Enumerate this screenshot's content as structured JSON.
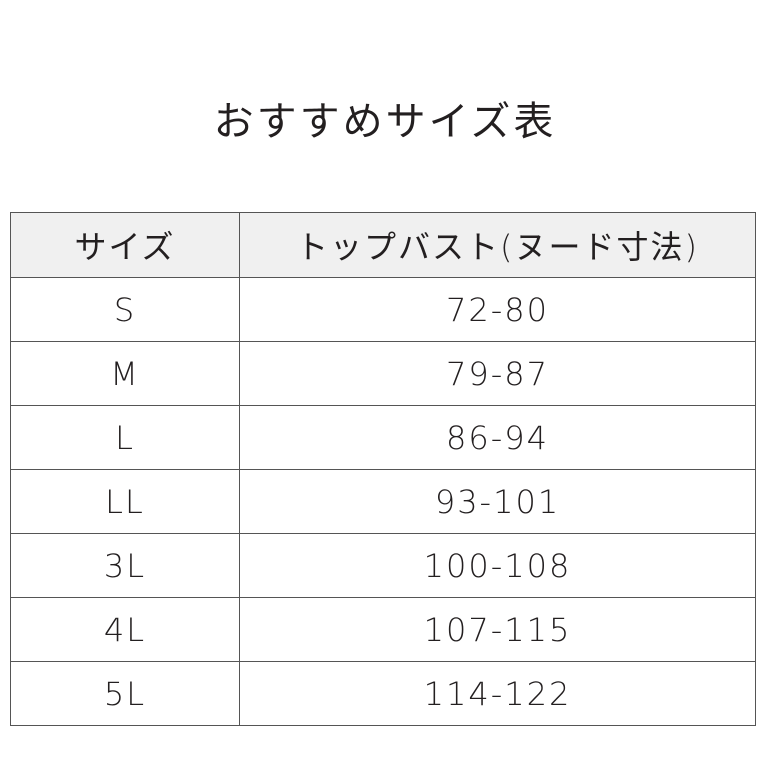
{
  "header": {
    "title": "おすすめサイズ表"
  },
  "table": {
    "columns": [
      "サイズ",
      "トップバスト(ヌード寸法)"
    ],
    "rows": [
      [
        "S",
        "72-80"
      ],
      [
        "M",
        "79-87"
      ],
      [
        "L",
        "86-94"
      ],
      [
        "LL",
        "93-101"
      ],
      [
        "3L",
        "100-108"
      ],
      [
        "4L",
        "107-115"
      ],
      [
        "5L",
        "114-122"
      ]
    ]
  }
}
